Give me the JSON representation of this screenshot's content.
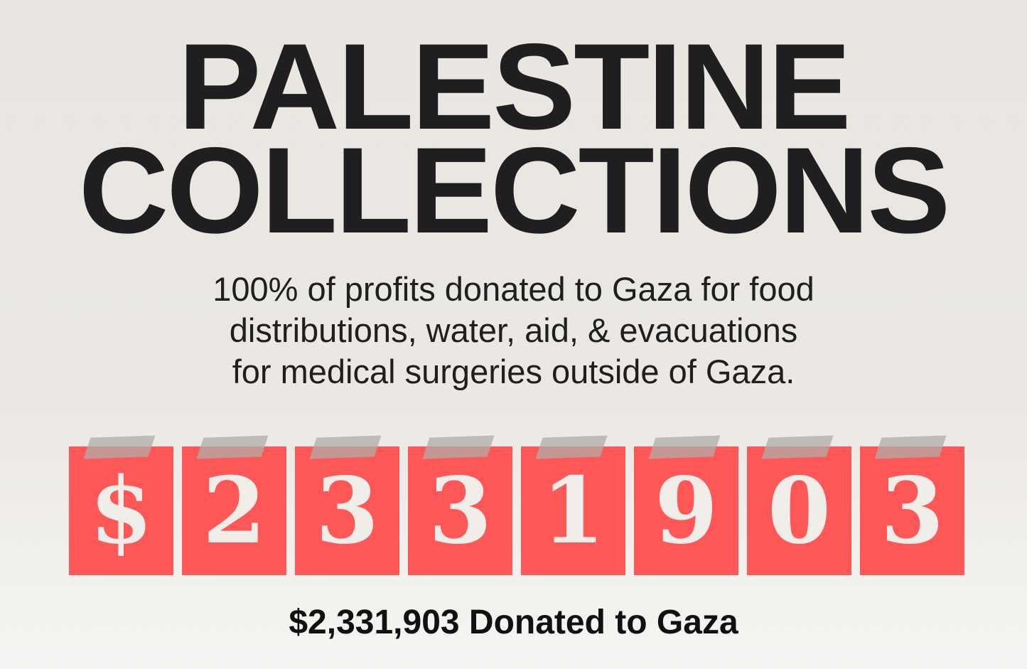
{
  "title": {
    "line1": "PALESTINE",
    "line2": "COLLECTIONS"
  },
  "subtitle": {
    "line1": "100% of profits donated to Gaza for food",
    "line2": "distributions, water, aid, & evacuations",
    "line3": "for medical surgeries outside of Gaza."
  },
  "counter": {
    "digits": [
      "$",
      "2",
      "3",
      "3",
      "1",
      "9",
      "0",
      "3"
    ],
    "tile_color": "#fd5857"
  },
  "total_label": "$2,331,903 Donated to Gaza"
}
